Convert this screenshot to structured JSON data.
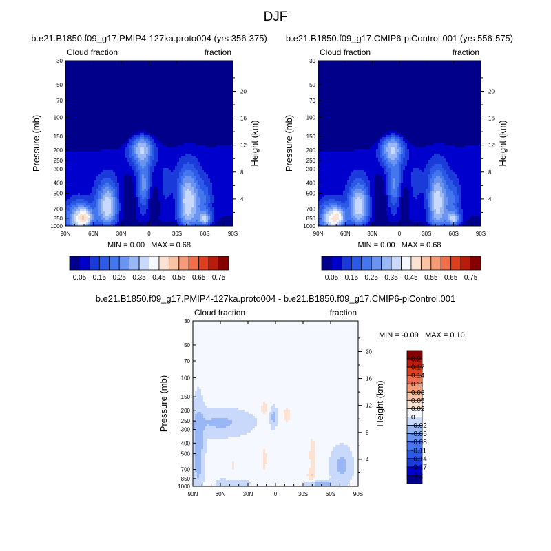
{
  "figure": {
    "title": "DJF"
  },
  "chart_data": [
    {
      "type": "heatmap",
      "id": "panel-1",
      "title": "b.e21.B1850.f09_g17.PMIP4-127ka.proto004 (yrs 356-375)",
      "left_string": "Cloud fraction",
      "right_string": "fraction",
      "ylabel": "Pressure (mb)",
      "y2label": "Height (km)",
      "x_ticks": [
        "90N",
        "60N",
        "30N",
        "0",
        "30S",
        "60S",
        "90S"
      ],
      "y_ticks": [
        "30",
        "50",
        "70",
        "100",
        "150",
        "200",
        "250",
        "300",
        "400",
        "500",
        "700",
        "850",
        "1000"
      ],
      "height_ticks": [
        "20",
        "16",
        "12",
        "8",
        "4"
      ],
      "stats": {
        "min_label": "MIN =",
        "min": "0.00",
        "max_label": "MAX =",
        "max": "0.68"
      },
      "x_range": [
        90,
        -90
      ],
      "y_range": [
        30,
        1000
      ],
      "y_scale": "log",
      "field": {
        "background": 0.07,
        "features": [
          {
            "lat": 90,
            "p": 100,
            "sx": 200,
            "sy": 0.45,
            "v": -0.25,
            "ys": "lt"
          },
          {
            "lat": 75,
            "p": 880,
            "sx": 13,
            "sy": 0.35,
            "v": 0.36
          },
          {
            "lat": 67,
            "p": 820,
            "sx": 7,
            "sy": 0.17,
            "v": 0.16
          },
          {
            "lat": 45,
            "p": 650,
            "sx": 11,
            "sy": 0.5,
            "v": 0.33
          },
          {
            "lat": 8,
            "p": 190,
            "sx": 13,
            "sy": 0.35,
            "v": 0.3
          },
          {
            "lat": 6,
            "p": 420,
            "sx": 8,
            "sy": 0.5,
            "v": 0.2
          },
          {
            "lat": -18,
            "p": 420,
            "sx": 8,
            "sy": 0.5,
            "v": 0.05
          },
          {
            "lat": -42,
            "p": 600,
            "sx": 12,
            "sy": 0.7,
            "v": 0.33
          },
          {
            "lat": -60,
            "p": 860,
            "sx": 7,
            "sy": 0.15,
            "v": 0.26
          },
          {
            "lat": -60,
            "p": 560,
            "sx": 8,
            "sy": 0.4,
            "v": 0.1
          },
          {
            "lat": -84,
            "p": 1000,
            "sx": 6,
            "sy": 0.14,
            "v": -0.3
          },
          {
            "lat": 22,
            "p": 620,
            "sx": 9,
            "sy": 0.55,
            "v": -0.1
          },
          {
            "lat": -5,
            "p": 600,
            "sx": 7,
            "sy": 0.45,
            "v": -0.08
          },
          {
            "lat": -28,
            "p": 650,
            "sx": 8,
            "sy": 0.5,
            "v": -0.05
          },
          {
            "lat": 5,
            "p": 1000,
            "sx": 110,
            "sy": 0.08,
            "v": -0.08
          }
        ]
      },
      "levels": [
        0.05,
        0.1,
        0.15,
        0.2,
        0.25,
        0.3,
        0.35,
        0.4,
        0.45,
        0.5,
        0.55,
        0.6,
        0.65,
        0.7,
        0.75
      ],
      "colors": [
        "#00008b",
        "#0000cc",
        "#1a3bd9",
        "#2c5ae6",
        "#4477ee",
        "#6b94f0",
        "#99b6f5",
        "#c8d9fb",
        "#f5f8ff",
        "#fbe2d2",
        "#f9c3a6",
        "#f69b77",
        "#f06e4a",
        "#dc3f1f",
        "#b61d0c",
        "#840000"
      ]
    },
    {
      "type": "heatmap",
      "id": "panel-2",
      "title": "b.e21.B1850.f09_g17.CMIP6-piControl.001 (yrs 556-575)",
      "left_string": "Cloud fraction",
      "right_string": "fraction",
      "ylabel": "Pressure (mb)",
      "y2label": "Height (km)",
      "x_ticks": [
        "90N",
        "60N",
        "30N",
        "0",
        "30S",
        "60S",
        "90S"
      ],
      "y_ticks": [
        "30",
        "50",
        "70",
        "100",
        "150",
        "200",
        "250",
        "300",
        "400",
        "500",
        "700",
        "850",
        "1000"
      ],
      "height_ticks": [
        "20",
        "16",
        "12",
        "8",
        "4"
      ],
      "stats": {
        "min_label": "MIN =",
        "min": "0.00",
        "max_label": "MAX =",
        "max": "0.68"
      },
      "x_range": [
        90,
        -90
      ],
      "y_range": [
        30,
        1000
      ],
      "y_scale": "log",
      "field": {
        "background": 0.07,
        "features": [
          {
            "lat": 90,
            "p": 100,
            "sx": 200,
            "sy": 0.45,
            "v": -0.25,
            "ys": "lt"
          },
          {
            "lat": 75,
            "p": 880,
            "sx": 13,
            "sy": 0.35,
            "v": 0.35
          },
          {
            "lat": 67,
            "p": 820,
            "sx": 7,
            "sy": 0.17,
            "v": 0.15
          },
          {
            "lat": 45,
            "p": 650,
            "sx": 11,
            "sy": 0.5,
            "v": 0.32
          },
          {
            "lat": 8,
            "p": 190,
            "sx": 13,
            "sy": 0.35,
            "v": 0.3
          },
          {
            "lat": 6,
            "p": 420,
            "sx": 8,
            "sy": 0.5,
            "v": 0.19
          },
          {
            "lat": -18,
            "p": 420,
            "sx": 8,
            "sy": 0.5,
            "v": 0.05
          },
          {
            "lat": -42,
            "p": 600,
            "sx": 12,
            "sy": 0.7,
            "v": 0.32
          },
          {
            "lat": -60,
            "p": 860,
            "sx": 7,
            "sy": 0.15,
            "v": 0.26
          },
          {
            "lat": -60,
            "p": 560,
            "sx": 8,
            "sy": 0.4,
            "v": 0.1
          },
          {
            "lat": -84,
            "p": 1000,
            "sx": 6,
            "sy": 0.14,
            "v": -0.3
          },
          {
            "lat": 22,
            "p": 620,
            "sx": 9,
            "sy": 0.55,
            "v": -0.11
          },
          {
            "lat": -5,
            "p": 600,
            "sx": 7,
            "sy": 0.45,
            "v": -0.08
          },
          {
            "lat": -28,
            "p": 650,
            "sx": 8,
            "sy": 0.5,
            "v": -0.05
          },
          {
            "lat": 5,
            "p": 1000,
            "sx": 110,
            "sy": 0.08,
            "v": -0.08
          }
        ]
      },
      "levels": [
        0.05,
        0.1,
        0.15,
        0.2,
        0.25,
        0.3,
        0.35,
        0.4,
        0.45,
        0.5,
        0.55,
        0.6,
        0.65,
        0.7,
        0.75
      ],
      "colors": [
        "#00008b",
        "#0000cc",
        "#1a3bd9",
        "#2c5ae6",
        "#4477ee",
        "#6b94f0",
        "#99b6f5",
        "#c8d9fb",
        "#f5f8ff",
        "#fbe2d2",
        "#f9c3a6",
        "#f69b77",
        "#f06e4a",
        "#dc3f1f",
        "#b61d0c",
        "#840000"
      ]
    },
    {
      "type": "heatmap",
      "id": "panel-diff",
      "title": "b.e21.B1850.f09_g17.PMIP4-127ka.proto004 - b.e21.B1850.f09_g17.CMIP6-piControl.001",
      "left_string": "Cloud fraction",
      "right_string": "fraction",
      "ylabel": "Pressure (mb)",
      "y2label": "Height (km)",
      "x_ticks": [
        "90N",
        "60N",
        "30N",
        "0",
        "30S",
        "60S",
        "90S"
      ],
      "y_ticks": [
        "30",
        "50",
        "70",
        "100",
        "150",
        "200",
        "250",
        "300",
        "400",
        "500",
        "700",
        "850",
        "1000"
      ],
      "height_ticks": [
        "20",
        "16",
        "12",
        "8",
        "4"
      ],
      "stats": {
        "min_label": "MIN =",
        "min": "-0.09",
        "max_label": "MAX =",
        "max": "0.10"
      },
      "x_range": [
        90,
        -90
      ],
      "y_range": [
        30,
        1000
      ],
      "y_scale": "log",
      "field": {
        "background": 0.005,
        "features": [
          {
            "lat": 84,
            "p": 450,
            "sx": 6,
            "sy": 0.9,
            "v": -0.04
          },
          {
            "lat": 60,
            "p": 260,
            "sx": 30,
            "sy": 0.25,
            "v": -0.03
          },
          {
            "lat": 12,
            "p": 190,
            "sx": 4,
            "sy": 0.14,
            "v": 0.03
          },
          {
            "lat": 2,
            "p": 230,
            "sx": 3,
            "sy": 0.2,
            "v": -0.035
          },
          {
            "lat": -12,
            "p": 220,
            "sx": 4,
            "sy": 0.18,
            "v": 0.03
          },
          {
            "lat": -40,
            "p": 520,
            "sx": 4,
            "sy": 0.5,
            "v": 0.026
          },
          {
            "lat": -38,
            "p": 780,
            "sx": 3,
            "sy": 0.1,
            "v": 0.04
          },
          {
            "lat": 12,
            "p": 560,
            "sx": 5,
            "sy": 0.5,
            "v": 0.018
          },
          {
            "lat": 46,
            "p": 650,
            "sx": 6,
            "sy": 0.4,
            "v": 0.016
          },
          {
            "lat": -72,
            "p": 650,
            "sx": 10,
            "sy": 0.35,
            "v": -0.032
          },
          {
            "lat": -50,
            "p": 960,
            "sx": 12,
            "sy": 0.07,
            "v": -0.05
          },
          {
            "lat": 50,
            "p": 940,
            "sx": 18,
            "sy": 0.09,
            "v": -0.022
          },
          {
            "lat": 72,
            "p": 950,
            "sx": 5,
            "sy": 0.08,
            "v": 0.02
          }
        ]
      },
      "levels": [
        -0.2,
        -0.17,
        -0.14,
        -0.11,
        -0.08,
        -0.05,
        -0.02,
        0,
        0.02,
        0.05,
        0.08,
        0.11,
        0.14,
        0.17,
        0.2
      ],
      "colors": [
        "#00008b",
        "#0000cc",
        "#1a3bd9",
        "#2c5ae6",
        "#4477ee",
        "#6b94f0",
        "#99b6f5",
        "#c8d9fb",
        "#f5f8ff",
        "#fbe2d2",
        "#f9c3a6",
        "#f69b77",
        "#f06e4a",
        "#dc3f1f",
        "#b61d0c",
        "#840000"
      ]
    }
  ],
  "colorbars": [
    {
      "id": "colorbar-top-left",
      "orientation": "horizontal",
      "labels": [
        "0.05",
        "0.15",
        "0.25",
        "0.35",
        "0.45",
        "0.55",
        "0.65",
        "0.75"
      ]
    },
    {
      "id": "colorbar-top-right",
      "orientation": "horizontal",
      "labels": [
        "0.05",
        "0.15",
        "0.25",
        "0.35",
        "0.45",
        "0.55",
        "0.65",
        "0.75"
      ]
    },
    {
      "id": "colorbar-diff",
      "orientation": "vertical",
      "labels": [
        "0.2",
        "0.17",
        "0.14",
        "0.11",
        "0.08",
        "0.05",
        "0.02",
        "0",
        "-0.02",
        "-0.05",
        "-0.08",
        "-0.11",
        "-0.14",
        "-0.17",
        "-0.2"
      ]
    }
  ]
}
